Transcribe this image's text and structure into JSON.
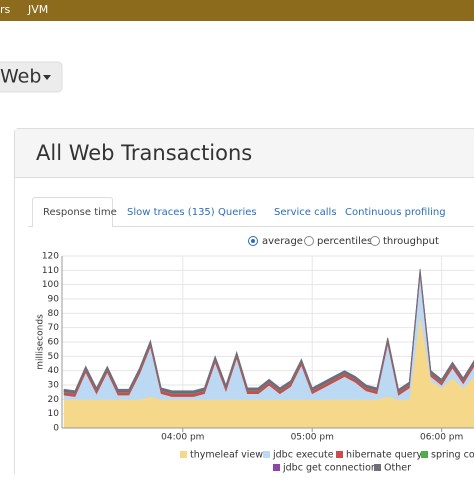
{
  "nav": {
    "items": [
      "rs",
      "JVM"
    ]
  },
  "transaction_type": "Web",
  "panel": {
    "title": "All Web Transactions",
    "tabs": [
      "Response time",
      "Slow traces (135)",
      "Queries",
      "Service calls",
      "Continuous profiling"
    ],
    "options": [
      "average",
      "percentiles",
      "throughput"
    ]
  },
  "chart_data": {
    "type": "area",
    "stacked": true,
    "y_label": "milliseconds",
    "grid": true,
    "x": [
      905,
      910,
      915,
      920,
      925,
      930,
      935,
      940,
      945,
      950,
      955,
      960,
      965,
      970,
      975,
      980,
      985,
      990,
      995,
      1000,
      1005,
      1010,
      1015,
      1020,
      1025,
      1030,
      1035,
      1040,
      1045,
      1050,
      1055,
      1060,
      1065,
      1070,
      1075,
      1080,
      1085,
      1090,
      1095
    ],
    "xlim": [
      904,
      1095
    ],
    "xticks": [
      {
        "value": 960,
        "label": "04:00 pm"
      },
      {
        "value": 1020,
        "label": "05:00 pm"
      },
      {
        "value": 1080,
        "label": "06:00 pm"
      }
    ],
    "ylim": [
      0,
      120
    ],
    "yticks": [
      0,
      10,
      20,
      30,
      40,
      50,
      60,
      70,
      80,
      90,
      100,
      110,
      120
    ],
    "series": [
      {
        "name": "thymeleaf view",
        "color": "#f6d88a",
        "values": [
          20,
          20,
          20,
          20,
          20,
          20,
          20,
          20,
          22,
          20,
          20,
          20,
          20,
          20,
          20,
          20,
          20,
          20,
          20,
          20,
          20,
          20,
          20,
          20,
          20,
          20,
          20,
          20,
          20,
          20,
          22,
          20,
          20,
          80,
          33,
          28,
          35,
          28,
          36
        ]
      },
      {
        "name": "jdbc execute",
        "color": "#bcd9f4",
        "values": [
          3,
          2,
          19,
          4,
          19,
          3,
          3,
          18,
          35,
          4,
          2,
          2,
          2,
          4,
          26,
          6,
          29,
          4,
          4,
          10,
          4,
          9,
          24,
          4,
          8,
          12,
          16,
          12,
          6,
          4,
          37,
          3,
          8,
          27,
          3,
          2,
          7,
          3,
          7
        ]
      },
      {
        "name": "hibernate query",
        "color": "#cc4b4b",
        "values": [
          2,
          2,
          2,
          2,
          2,
          2,
          2,
          2,
          2,
          2,
          2,
          2,
          2,
          2,
          2,
          2,
          2,
          2,
          2,
          2,
          2,
          2,
          2,
          2,
          2,
          2,
          2,
          2,
          2,
          2,
          2,
          2,
          2,
          2,
          2,
          2,
          2,
          2,
          2
        ]
      },
      {
        "name": "spring con",
        "color": "#4cae4c",
        "values": [
          0.5,
          0.5,
          0.5,
          0.5,
          0.5,
          0.5,
          0.5,
          0.5,
          0.5,
          0.5,
          0.5,
          0.5,
          0.5,
          0.5,
          0.5,
          0.5,
          0.5,
          0.5,
          0.5,
          0.5,
          0.5,
          0.5,
          0.5,
          0.5,
          0.5,
          0.5,
          0.5,
          0.5,
          0.5,
          0.5,
          0.5,
          0.5,
          0.5,
          0.5,
          0.5,
          0.5,
          0.5,
          0.5,
          0.5
        ]
      },
      {
        "name": "jdbc get connection",
        "color": "#8e44ad",
        "values": [
          0.5,
          0.5,
          0.5,
          0.5,
          0.5,
          0.5,
          0.5,
          0.5,
          0.5,
          0.5,
          0.5,
          0.5,
          0.5,
          0.5,
          0.5,
          0.5,
          0.5,
          0.5,
          0.5,
          0.5,
          0.5,
          0.5,
          0.5,
          0.5,
          0.5,
          0.5,
          0.5,
          0.5,
          0.5,
          0.5,
          0.5,
          0.5,
          0.5,
          0.5,
          0.5,
          0.5,
          0.5,
          0.5,
          0.5
        ]
      },
      {
        "name": "Other",
        "color": "#6f6f7a",
        "values": [
          1,
          1,
          1,
          1,
          1,
          1,
          1,
          1,
          1,
          1,
          1,
          1,
          1,
          1,
          1,
          1,
          1,
          1,
          1,
          1,
          1,
          1,
          1,
          1,
          1,
          1,
          1,
          1,
          1,
          1,
          1,
          1,
          1,
          1,
          1,
          1,
          1,
          1,
          1
        ]
      }
    ]
  }
}
